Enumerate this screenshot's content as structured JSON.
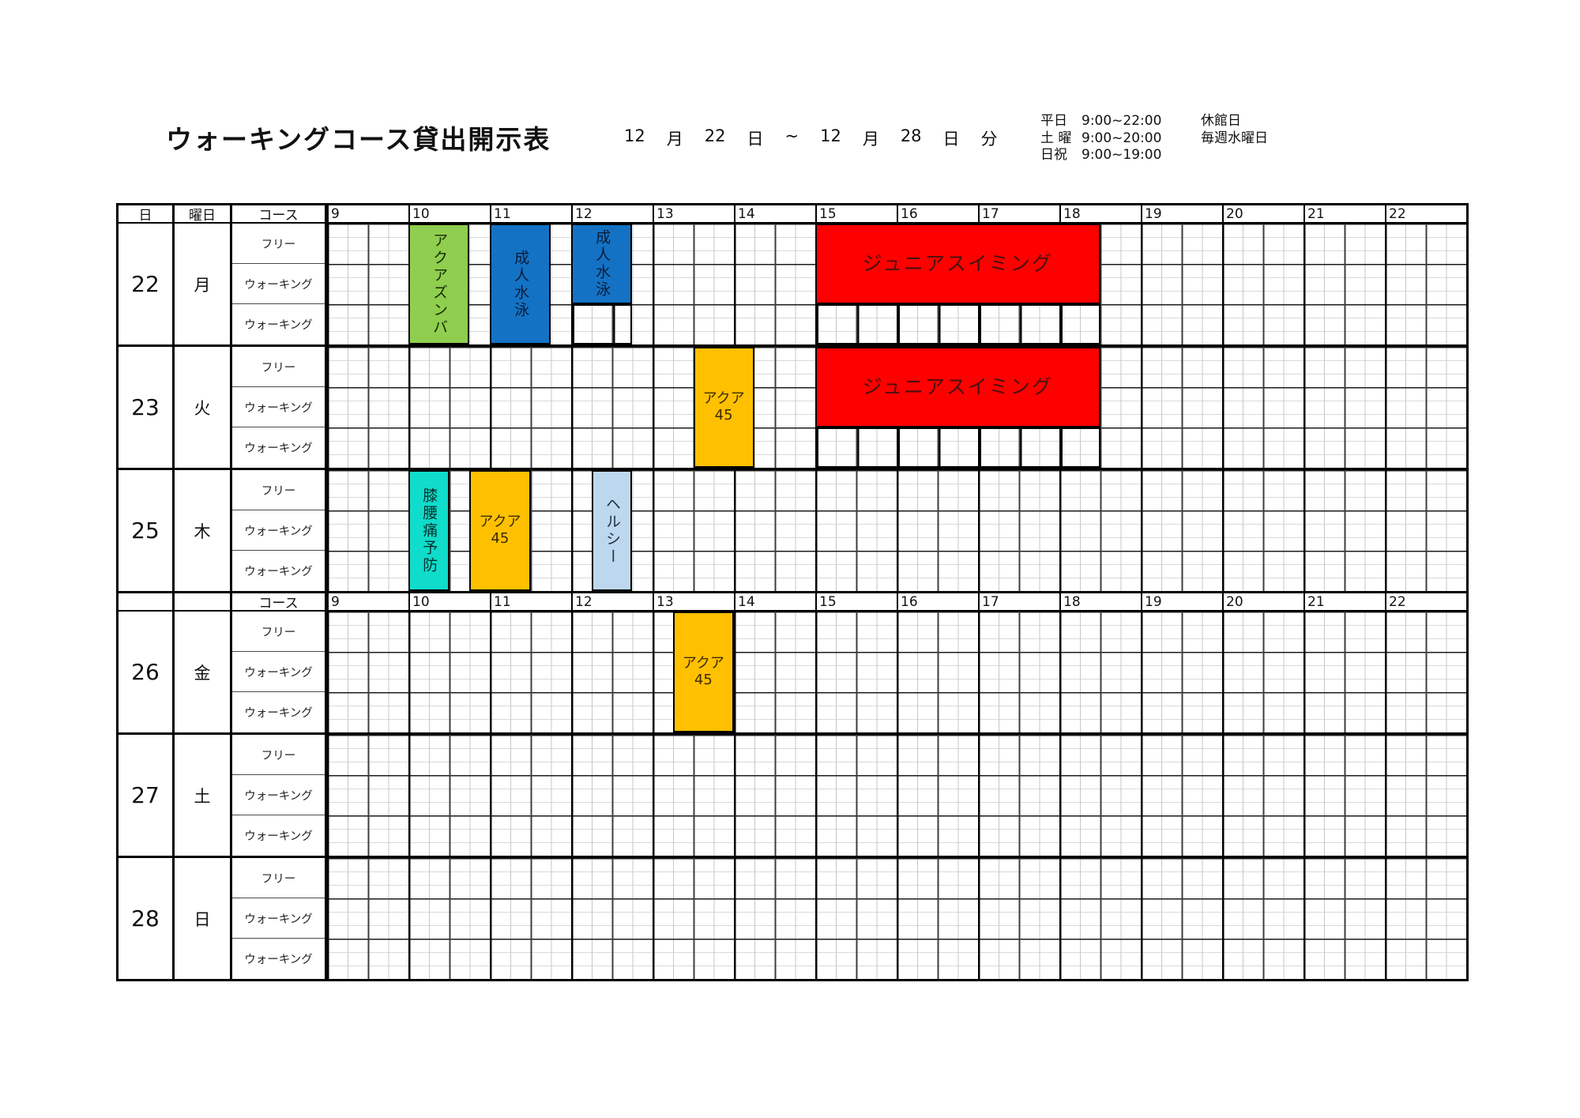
{
  "title": "ウォーキングコース貸出開示表",
  "period_tokens": [
    "12",
    "月",
    "22",
    "日",
    "~",
    "12",
    "月",
    "28",
    "日",
    "分"
  ],
  "opening_hours": [
    {
      "label": "平日",
      "time": "9:00~22:00"
    },
    {
      "label": "土 曜",
      "time": "9:00~20:00"
    },
    {
      "label": "日祝",
      "time": "9:00~19:00"
    }
  ],
  "closed_info": {
    "label": "休館日",
    "value": "毎週水曜日"
  },
  "table": {
    "corner_day": "日",
    "corner_weekday": "曜日",
    "corner_course": "コース",
    "hours": [
      "9",
      "10",
      "11",
      "12",
      "13",
      "14",
      "15",
      "16",
      "17",
      "18",
      "19",
      "20",
      "21",
      "22"
    ],
    "lanes": [
      "フリー",
      "ウォーキング",
      "ウォーキング"
    ],
    "days": [
      {
        "date": "22",
        "weekday": "月",
        "events": [
          {
            "label": "アクアズンバ",
            "start": 10,
            "end": 10.75,
            "rows": 3,
            "dir": "v",
            "color": "#8FCE4E",
            "text_color": "#152a05"
          },
          {
            "label": "成人水泳",
            "start": 11,
            "end": 11.75,
            "rows": 3,
            "dir": "v",
            "color": "#1472C4",
            "text_color": "#0a1c38"
          },
          {
            "label": "成人水泳",
            "start": 12,
            "end": 12.75,
            "rows": 2,
            "dir": "v",
            "color": "#1472C4",
            "text_color": "#0a1c38"
          },
          {
            "label": "ジュニアスイミング",
            "start": 15,
            "end": 18.5,
            "rows": 2,
            "dir": "h",
            "big": true,
            "color": "#FE0000",
            "text_color": "#4a0f0f"
          }
        ]
      },
      {
        "date": "23",
        "weekday": "火",
        "events": [
          {
            "label": [
              "アクア",
              "45"
            ],
            "start": 13.5,
            "end": 14.25,
            "rows": 3,
            "dir": "h",
            "color": "#FFC000",
            "text_color": "#3f2a00"
          },
          {
            "label": "ジュニアスイミング",
            "start": 15,
            "end": 18.5,
            "rows": 2,
            "dir": "h",
            "big": true,
            "color": "#FE0000",
            "text_color": "#4a0f0f"
          }
        ]
      },
      {
        "date": "25",
        "weekday": "木",
        "events": [
          {
            "label": "膝腰痛予防",
            "start": 10,
            "end": 10.5,
            "rows": 3,
            "dir": "v",
            "color": "#0FDCCB",
            "text_color": "#07302b"
          },
          {
            "label": [
              "アクア",
              "45"
            ],
            "start": 10.75,
            "end": 11.5,
            "rows": 3,
            "dir": "h",
            "color": "#FFC000",
            "text_color": "#3f2a00"
          },
          {
            "label": "ヘルシー",
            "start": 12.25,
            "end": 12.75,
            "rows": 3,
            "dir": "v",
            "color": "#BDD7EE",
            "text_color": "#1c2c3c"
          }
        ]
      },
      {
        "date": "26",
        "weekday": "金",
        "events": [
          {
            "label": [
              "アクア",
              "45"
            ],
            "start": 13.25,
            "end": 14,
            "rows": 3,
            "dir": "h",
            "color": "#FFC000",
            "text_color": "#3f2a00"
          }
        ]
      },
      {
        "date": "27",
        "weekday": "土",
        "events": []
      },
      {
        "date": "28",
        "weekday": "日",
        "events": []
      }
    ]
  },
  "colors": {
    "grid_hour_line": "#000000",
    "grid_half_hour_line": "#3d3d3d",
    "grid_quarter_line": "#c7c7c7",
    "event_border": "#000000",
    "junior_swimming_red": "#FE0000",
    "aqua45_orange": "#FFC000",
    "adult_swim_blue": "#1472C4",
    "aqua_zumba_green": "#8FCE4E",
    "knee_back_teal": "#0FDCCB",
    "healthy_lightblue": "#BDD7EE"
  }
}
